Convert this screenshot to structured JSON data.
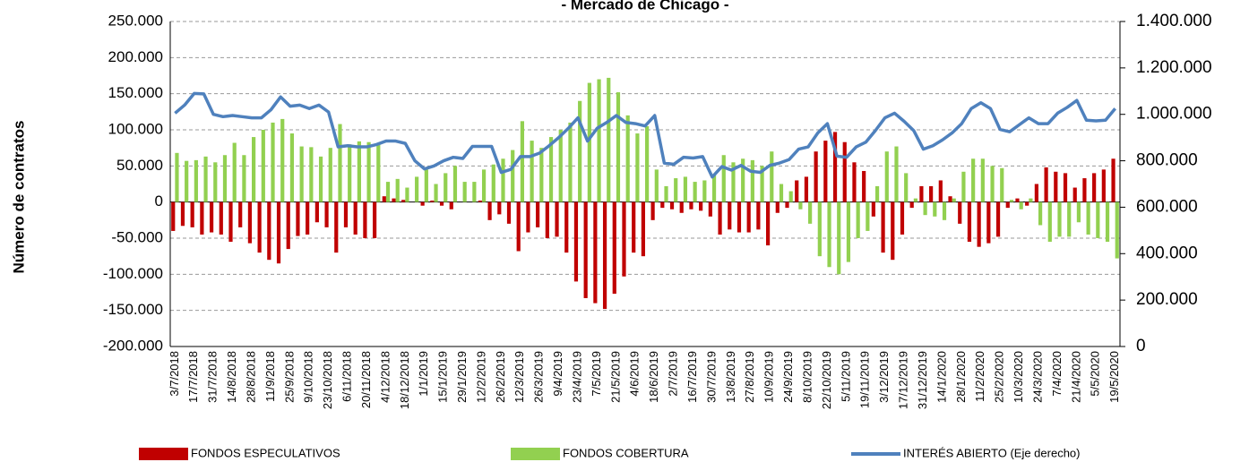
{
  "chart_data": {
    "type": "bar",
    "title": "- Mercado de Chicago -",
    "ylabel": "Número de contratos",
    "categories": [
      "3/7/2018",
      null,
      "17/7/2018",
      null,
      "31/7/2018",
      null,
      "14/8/2018",
      null,
      "28/8/2018",
      null,
      "11/9/2018",
      null,
      "25/9/2018",
      null,
      "9/10/2018",
      null,
      "23/10/2018",
      null,
      "6/11/2018",
      null,
      "20/11/2018",
      null,
      "4/12/2018",
      null,
      "18/12/2018",
      null,
      "1/1/2019",
      null,
      "15/1/2019",
      null,
      "29/1/2019",
      null,
      "12/2/2019",
      null,
      "26/2/2019",
      null,
      "12/3/2019",
      null,
      "26/3/2019",
      null,
      "9/4/2019",
      null,
      "23/4/2019",
      null,
      "7/5/2019",
      null,
      "21/5/2019",
      null,
      "4/6/2019",
      null,
      "18/6/2019",
      null,
      "2/7/2019",
      null,
      "16/7/2019",
      null,
      "30/7/2019",
      null,
      "13/8/2019",
      null,
      "27/8/2019",
      null,
      "10/9/2019",
      null,
      "24/9/2019",
      null,
      "8/10/2019",
      null,
      "22/10/2019",
      null,
      "5/11/2019",
      null,
      "19/11/2019",
      null,
      "3/12/2019",
      null,
      "17/12/2019",
      null,
      "31/12/2019",
      null,
      "14/1/2020",
      null,
      "28/1/2020",
      null,
      "11/2/2020",
      null,
      "25/2/2020",
      null,
      "10/3/2020",
      null,
      "24/3/2020",
      null,
      "7/4/2020",
      null,
      "21/4/2020",
      null,
      "5/5/2020",
      null,
      "19/5/2020"
    ],
    "series": [
      {
        "name": "FONDOS ESPECULATIVOS",
        "color": "#c00000",
        "values": [
          -40000,
          -33000,
          -35000,
          -45000,
          -42000,
          -45000,
          -55000,
          -35000,
          -57000,
          -70000,
          -80000,
          -85000,
          -65000,
          -47000,
          -45000,
          -28000,
          -35000,
          -70000,
          -35000,
          -45000,
          -50000,
          -50000,
          8000,
          5000,
          3000,
          0,
          -5000,
          2000,
          -5000,
          -10000,
          0,
          0,
          2000,
          -25000,
          -17000,
          -30000,
          -68000,
          -42000,
          -35000,
          -50000,
          -48000,
          -70000,
          -110000,
          -133000,
          -140000,
          -148000,
          -127000,
          -103000,
          -70000,
          -75000,
          -25000,
          -8000,
          -10000,
          -15000,
          -10000,
          -12000,
          -20000,
          -45000,
          -38000,
          -42000,
          -42000,
          -38000,
          -60000,
          -15000,
          -8000,
          30000,
          35000,
          70000,
          85000,
          97000,
          83000,
          55000,
          43000,
          -20000,
          -70000,
          -80000,
          -45000,
          -8000,
          22000,
          22000,
          30000,
          8000,
          -30000,
          -55000,
          -62000,
          -57000,
          -48000,
          -8000,
          5000,
          -5000,
          25000,
          48000,
          42000,
          40000,
          20000,
          33000,
          40000,
          45000,
          60000
        ]
      },
      {
        "name": "FONDOS COBERTURA",
        "color": "#92d050",
        "values": [
          68000,
          57000,
          58000,
          63000,
          55000,
          65000,
          82000,
          65000,
          90000,
          100000,
          110000,
          115000,
          95000,
          77000,
          76000,
          63000,
          75000,
          108000,
          80000,
          84000,
          83000,
          80000,
          28000,
          32000,
          20000,
          35000,
          45000,
          25000,
          40000,
          50000,
          28000,
          28000,
          45000,
          52000,
          60000,
          72000,
          112000,
          85000,
          75000,
          90000,
          100000,
          110000,
          140000,
          165000,
          170000,
          172000,
          152000,
          120000,
          95000,
          105000,
          45000,
          22000,
          33000,
          35000,
          28000,
          30000,
          38000,
          65000,
          55000,
          60000,
          58000,
          50000,
          70000,
          25000,
          15000,
          -10000,
          -30000,
          -75000,
          -90000,
          -100000,
          -83000,
          -50000,
          -40000,
          22000,
          70000,
          77000,
          40000,
          5000,
          -18000,
          -20000,
          -25000,
          5000,
          42000,
          60000,
          60000,
          50000,
          47000,
          3000,
          -10000,
          5000,
          -32000,
          -55000,
          -48000,
          -48000,
          -28000,
          -45000,
          -50000,
          -55000,
          -78000
        ]
      },
      {
        "name": "INTERÉS ABIERTO (Eje derecho)",
        "color": "#4f81bd",
        "axis": "y2",
        "type": "line",
        "values": [
          1005000,
          1040000,
          1090000,
          1088000,
          1000000,
          990000,
          995000,
          990000,
          985000,
          985000,
          1020000,
          1075000,
          1035000,
          1040000,
          1025000,
          1040000,
          1010000,
          860000,
          865000,
          860000,
          860000,
          870000,
          885000,
          885000,
          875000,
          800000,
          765000,
          778000,
          800000,
          815000,
          810000,
          862000,
          862000,
          862000,
          750000,
          763000,
          818000,
          818000,
          833000,
          865000,
          900000,
          940000,
          985000,
          885000,
          940000,
          965000,
          995000,
          965000,
          960000,
          950000,
          995000,
          790000,
          785000,
          815000,
          812000,
          818000,
          730000,
          775000,
          760000,
          780000,
          755000,
          750000,
          780000,
          790000,
          805000,
          850000,
          860000,
          920000,
          960000,
          820000,
          815000,
          860000,
          880000,
          930000,
          985000,
          1005000,
          970000,
          930000,
          850000,
          865000,
          890000,
          920000,
          960000,
          1025000,
          1050000,
          1025000,
          935000,
          925000,
          955000,
          985000,
          960000,
          960000,
          1005000,
          1030000,
          1060000,
          975000,
          972000,
          975000,
          1025000
        ]
      }
    ],
    "ylim": [
      -200000,
      250000
    ],
    "yticks": [
      {
        "value": -200000,
        "label": "-200.000"
      },
      {
        "value": -150000,
        "label": "-150.000"
      },
      {
        "value": -100000,
        "label": "-100.000"
      },
      {
        "value": -50000,
        "label": "-50.000"
      },
      0,
      {
        "value": 50000,
        "label": "50.000"
      },
      {
        "value": 100000,
        "label": "100.000"
      },
      {
        "value": 150000,
        "label": "150.000"
      },
      {
        "value": 200000,
        "label": "200.000"
      },
      {
        "value": 250000,
        "label": "250.000"
      }
    ],
    "y2lim": [
      0,
      1400000
    ],
    "y2ticks": [
      0,
      {
        "value": 200000,
        "label": "200.000"
      },
      {
        "value": 400000,
        "label": "400.000"
      },
      {
        "value": 600000,
        "label": "600.000"
      },
      {
        "value": 800000,
        "label": "800.000"
      },
      {
        "value": 1000000,
        "label": "1.000.000"
      },
      {
        "value": 1200000,
        "label": "1.200.000"
      },
      {
        "value": 1400000,
        "label": "1.400.000"
      }
    ],
    "grid": true,
    "legend": "bottom"
  }
}
